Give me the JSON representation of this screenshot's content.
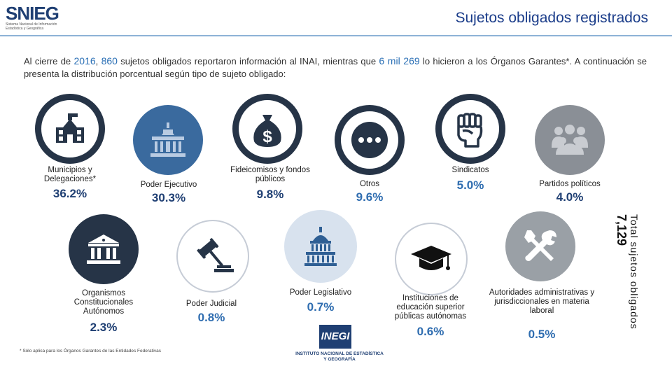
{
  "header": {
    "logo_text": "SNIEG",
    "logo_subtitle": "Sistema Nacional de Información Estadística y Geográfica",
    "title": "Sujetos obligados registrados"
  },
  "intro": {
    "part1": "Al cierre de ",
    "year": "2016",
    "part2": ", ",
    "count": "860",
    "part3": " sujetos obligados reportaron información al INAI, mientras que ",
    "other_count": "6 mil 269",
    "part4": " lo hicieron a los Órganos Garantes*. A continuación se presenta la distribución porcentual según tipo de sujeto obligado:"
  },
  "categories_top": [
    {
      "label": "Municipios y Delegaciones*",
      "value": "36.2%",
      "icon": "town-hall-icon"
    },
    {
      "label": "Poder Ejecutivo",
      "value": "30.3%",
      "icon": "government-building-icon"
    },
    {
      "label": "Fideicomisos y fondos públicos",
      "value": "9.8%",
      "icon": "money-bag-icon"
    },
    {
      "label": "Otros",
      "value": "9.6%",
      "icon": "ellipsis-icon"
    },
    {
      "label": "Sindicatos",
      "value": "5.0%",
      "icon": "raised-fist-icon"
    },
    {
      "label": "Partidos políticos",
      "value": "4.0%",
      "icon": "group-people-icon"
    }
  ],
  "categories_bottom": [
    {
      "label": "Organismos Constitucionales Autónomos",
      "value": "2.3%",
      "icon": "institution-icon"
    },
    {
      "label": "Poder Judicial",
      "value": "0.8%",
      "icon": "gavel-icon"
    },
    {
      "label": "Poder Legislativo",
      "value": "0.7%",
      "icon": "capitol-icon"
    },
    {
      "label": "Instituciones de educación superior públicas autónomas",
      "value": "0.6%",
      "icon": "graduation-cap-icon"
    },
    {
      "label": "Autoridades administrativas y jurisdiccionales en materia laboral",
      "value": "0.5%",
      "icon": "tools-icon"
    }
  ],
  "total": {
    "label": "Total sujetos obligados",
    "value": "7,129"
  },
  "footnote": "* Sólo aplica para los Órganos Garantes de las Entidades Federativas",
  "inegi": {
    "mark": "INEGI",
    "name": "INSTITUTO NACIONAL DE ESTADÍSTICA Y GEOGRAFÍA"
  },
  "colors": {
    "dark_navy": "#263447",
    "blue": "#3a6a9e",
    "gray": "#8a8f96",
    "title_blue": "#1b3d8a"
  }
}
